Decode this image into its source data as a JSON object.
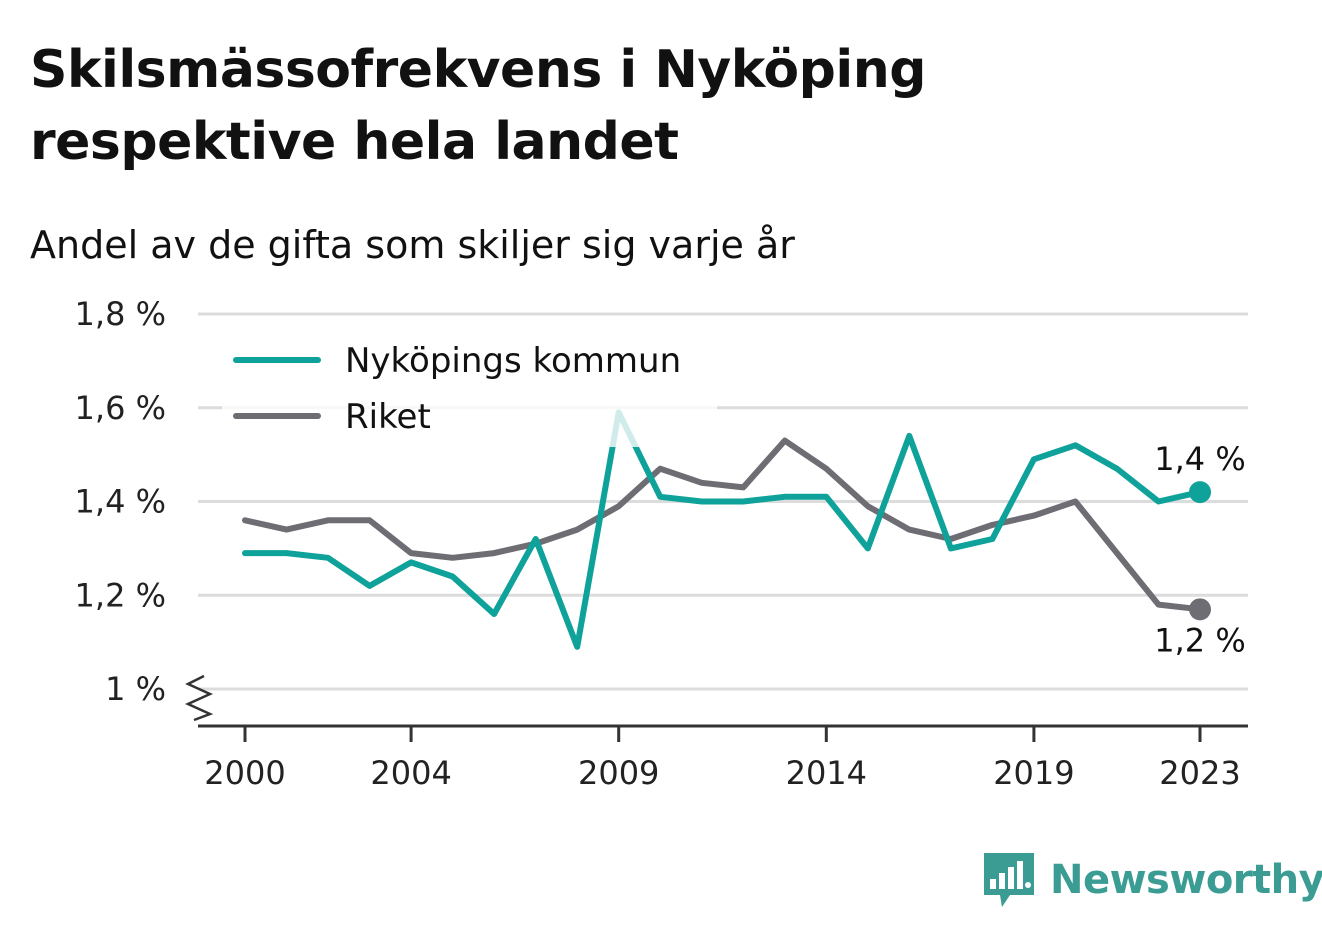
{
  "title": "Skilsmässofrekvens i Nyköping respektive hela landet",
  "subtitle": "Andel av de gifta som skiljer sig varje år",
  "brand": {
    "name": "Newsworthy",
    "icon": "bar-chart-speech-bubble-icon",
    "color": "#3a9c93"
  },
  "chart_data": {
    "type": "line",
    "x": [
      2000,
      2001,
      2002,
      2003,
      2004,
      2005,
      2006,
      2007,
      2008,
      2009,
      2010,
      2011,
      2012,
      2013,
      2014,
      2015,
      2016,
      2017,
      2018,
      2019,
      2020,
      2021,
      2022,
      2023
    ],
    "x_ticks": [
      2000,
      2004,
      2009,
      2014,
      2019,
      2023
    ],
    "x_tick_labels": [
      "2000",
      "2004",
      "2009",
      "2014",
      "2019",
      "2023"
    ],
    "ylim": [
      1.0,
      1.8
    ],
    "y_ticks": [
      1.0,
      1.2,
      1.4,
      1.6,
      1.8
    ],
    "y_tick_labels": [
      "1 %",
      "1,2 %",
      "1,4 %",
      "1,6 %",
      "1,8 %"
    ],
    "y_axis_break": true,
    "grid": true,
    "legend_position": "top-left",
    "series": [
      {
        "name": "Nyköpings kommun",
        "color": "#0fa29a",
        "values": [
          1.29,
          1.29,
          1.28,
          1.22,
          1.27,
          1.24,
          1.16,
          1.32,
          1.09,
          1.59,
          1.41,
          1.4,
          1.4,
          1.41,
          1.41,
          1.3,
          1.54,
          1.3,
          1.32,
          1.49,
          1.52,
          1.47,
          1.4,
          1.42
        ],
        "end_label": "1,4 %"
      },
      {
        "name": "Riket",
        "color": "#6d6d73",
        "values": [
          1.36,
          1.34,
          1.36,
          1.36,
          1.29,
          1.28,
          1.29,
          1.31,
          1.34,
          1.39,
          1.47,
          1.44,
          1.43,
          1.53,
          1.47,
          1.39,
          1.34,
          1.32,
          1.35,
          1.37,
          1.4,
          1.29,
          1.18,
          1.17
        ],
        "end_label": "1,2 %"
      }
    ]
  }
}
